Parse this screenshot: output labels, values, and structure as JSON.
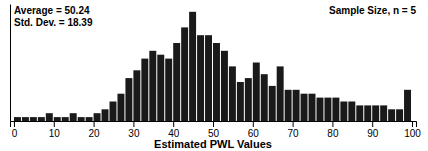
{
  "chart_data": {
    "type": "histogram",
    "annotations": [
      "Average = 50.24\nStd. Dev. = 18.39",
      "Sample Size, n = 5"
    ],
    "xlabel": "Estimated PWL Values",
    "color": "#1a1a1a",
    "xlim": [
      -1,
      101
    ],
    "xticks": [
      0,
      10,
      20,
      30,
      40,
      50,
      60,
      70,
      80,
      90,
      100
    ],
    "ylim": [
      0,
      30
    ],
    "tick_labels": "x",
    "bins": [
      0,
      2,
      4,
      6,
      8,
      10,
      12,
      14,
      16,
      18,
      20,
      22,
      24,
      26,
      28,
      30,
      32,
      34,
      36,
      38,
      40,
      42,
      44,
      46,
      48,
      50,
      52,
      54,
      56,
      58,
      60,
      62,
      64,
      66,
      68,
      70,
      72,
      74,
      76,
      78,
      80,
      82,
      84,
      86,
      88,
      90,
      92,
      94,
      96,
      98,
      100
    ],
    "values": [
      1,
      1,
      1,
      1,
      2,
      1,
      1,
      2,
      1,
      1,
      2,
      3,
      5,
      7,
      11,
      13,
      16,
      18,
      17,
      16,
      20,
      24,
      28,
      22,
      22,
      20,
      18,
      14,
      10,
      11,
      15,
      12,
      9,
      14,
      8,
      8,
      7,
      7,
      6,
      6,
      6,
      5,
      5,
      4,
      4,
      4,
      4,
      3,
      3,
      8
    ]
  }
}
